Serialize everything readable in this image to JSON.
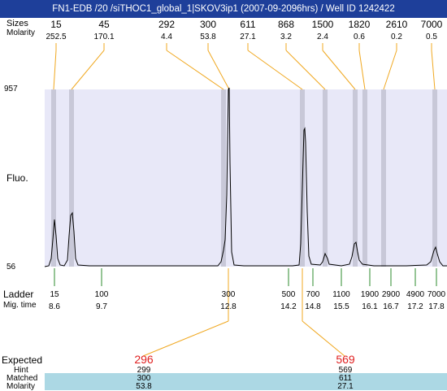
{
  "window": {
    "title": "FN1-EDB /20 /siTHOC1_global_1|SKOV3ip1 (2007-09-2096hrs) / Well ID 1242422"
  },
  "header_rows": {
    "size_label": "Sizes",
    "molarity_label": "Molarity",
    "peaks": [
      {
        "size": "15",
        "molarity": "252.5"
      },
      {
        "size": "45",
        "molarity": "170.1"
      },
      {
        "size": "292",
        "molarity": "4.4"
      },
      {
        "size": "300",
        "molarity": "53.8"
      },
      {
        "size": "611",
        "molarity": "27.1"
      },
      {
        "size": "868",
        "molarity": "3.2"
      },
      {
        "size": "1500",
        "molarity": "2.4"
      },
      {
        "size": "1820",
        "molarity": "0.6"
      },
      {
        "size": "2610",
        "molarity": "0.2"
      },
      {
        "size": "7000",
        "molarity": "0.5"
      }
    ]
  },
  "plot": {
    "ymax_label": "957",
    "ymin_label": "56",
    "y_axis_label": "Fluo.",
    "plot_bg": "#e8e8f8",
    "band_color": "#c8c8d8"
  },
  "ladder": {
    "label": "Ladder",
    "mig_label": "Mig. time",
    "entries": [
      {
        "size": "15",
        "time": "8.6"
      },
      {
        "size": "100",
        "time": "9.7"
      },
      {
        "size": "300",
        "time": "12.8"
      },
      {
        "size": "500",
        "time": "14.2"
      },
      {
        "size": "700",
        "time": "14.8"
      },
      {
        "size": "1100",
        "time": "15.5"
      },
      {
        "size": "1900",
        "time": "16.1"
      },
      {
        "size": "2900",
        "time": "16.7"
      },
      {
        "size": "4900",
        "time": "17.2"
      },
      {
        "size": "7000",
        "time": "17.8"
      }
    ]
  },
  "expected": {
    "labels": {
      "expected": "Expected",
      "hint": "Hint",
      "matched": "Matched",
      "molarity": "Molarity"
    },
    "columns": [
      {
        "expected": "296",
        "hint": "299",
        "matched": "300",
        "molarity": "53.8"
      },
      {
        "expected": "569",
        "hint": "569",
        "matched": "611",
        "molarity": "27.1"
      }
    ]
  },
  "colors": {
    "title_bg": "#1e3f9a",
    "connector": "#f0a820",
    "ladder_tick": "#2e8b2e",
    "expected_red": "#e02020",
    "matched_band": "#acd8e4"
  }
}
